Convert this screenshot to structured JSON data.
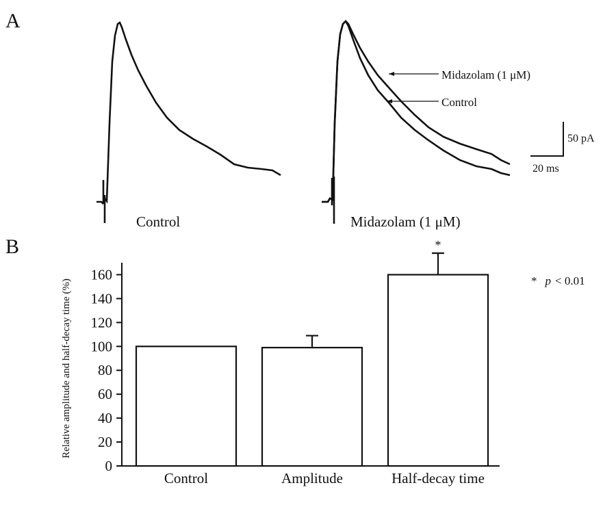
{
  "panel_a": {
    "label": "A",
    "left_trace_label": "Control",
    "right_trace_label": "Midazolam (1 μM)",
    "annotation_midazolam": "Midazolam (1 μM)",
    "annotation_control": "Control",
    "scale_bar_current": "50 pA",
    "scale_bar_time": "20 ms"
  },
  "panel_b": {
    "label": "B",
    "significance_legend_star": "*",
    "significance_legend_p": "p",
    "significance_legend_rest": "< 0.01"
  },
  "chart_data": [
    {
      "type": "line",
      "title": "",
      "xlabel": "",
      "ylabel": "",
      "series": [
        {
          "name": "Control",
          "description_note": ""
        },
        {
          "name": "Midazolam (1 μM)"
        }
      ],
      "scale_bars": {
        "current_pA": 50,
        "time_ms": 20
      }
    },
    {
      "type": "bar",
      "categories": [
        "Control",
        "Amplitude",
        "Half-decay time"
      ],
      "values": [
        100,
        99,
        160
      ],
      "errors": [
        0,
        10,
        18
      ],
      "significance": [
        "",
        "",
        "*"
      ],
      "ylabel": "Relative amplitude and half-decay time (%)",
      "ylim": [
        0,
        170
      ],
      "yticks": [
        0,
        20,
        40,
        60,
        80,
        100,
        120,
        140,
        160
      ],
      "grid": false,
      "legend": "* p < 0.01"
    }
  ]
}
